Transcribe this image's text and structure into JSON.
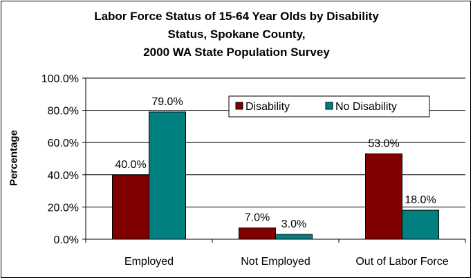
{
  "chart_data": {
    "type": "bar",
    "title_lines": [
      "Labor Force Status of 15-64 Year Olds by Disability",
      "Status, Spokane County,",
      "2000 WA State Population Survey"
    ],
    "ylabel": "Percentage",
    "xlabel": "",
    "categories": [
      "Employed",
      "Not Employed",
      "Out of Labor Force"
    ],
    "series": [
      {
        "name": "Disability",
        "color": "#800000",
        "values": [
          40.0,
          7.0,
          53.0
        ],
        "labels": [
          "40.0%",
          "7.0%",
          "53.0%"
        ]
      },
      {
        "name": "No Disability",
        "color": "#008080",
        "values": [
          79.0,
          3.0,
          18.0
        ],
        "labels": [
          "79.0%",
          "3.0%",
          "18.0%"
        ]
      }
    ],
    "ylim": [
      0,
      100
    ],
    "yticks": [
      0,
      20,
      40,
      60,
      80,
      100
    ],
    "ytick_labels": [
      "0.0%",
      "20.0%",
      "40.0%",
      "60.0%",
      "80.0%",
      "100.0%"
    ],
    "grid": true,
    "legend_position": "top-right"
  }
}
